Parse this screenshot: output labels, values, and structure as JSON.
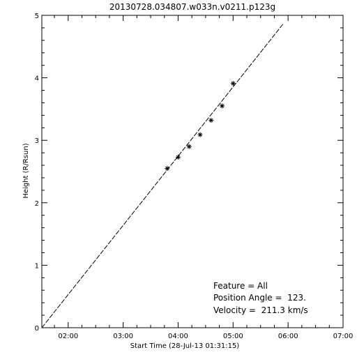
{
  "chart_data": {
    "type": "scatter",
    "title": "20130728.034807.w033n.v0211.p123g",
    "xlabel": "Start Time (28-Jul-13 01:31:15)",
    "ylabel": "Height (R/Rsun)",
    "xlim": [
      "01:31:15",
      "07:00"
    ],
    "ylim": [
      0,
      5
    ],
    "x_ticks": [
      "02:00",
      "03:00",
      "04:00",
      "05:00",
      "06:00",
      "07:00"
    ],
    "y_ticks": [
      "0",
      "1",
      "2",
      "3",
      "4",
      "5"
    ],
    "grid": false,
    "marker": "asterisk",
    "points": [
      {
        "x": "03:48:07",
        "y": 2.55
      },
      {
        "x": "04:00:00",
        "y": 2.73
      },
      {
        "x": "04:12:00",
        "y": 2.9
      },
      {
        "x": "04:24:00",
        "y": 3.09
      },
      {
        "x": "04:36:00",
        "y": 3.32
      },
      {
        "x": "04:48:00",
        "y": 3.55
      },
      {
        "x": "05:00:00",
        "y": 3.91
      }
    ],
    "fit_line": {
      "style": "dashed",
      "points": [
        {
          "x": "01:31:15",
          "y": 0.0
        },
        {
          "x": "05:55:00",
          "y": 4.87
        }
      ]
    },
    "annotations": [
      "Feature = All",
      "Position Angle =  123.",
      "Velocity =  211.3 km/s"
    ]
  }
}
